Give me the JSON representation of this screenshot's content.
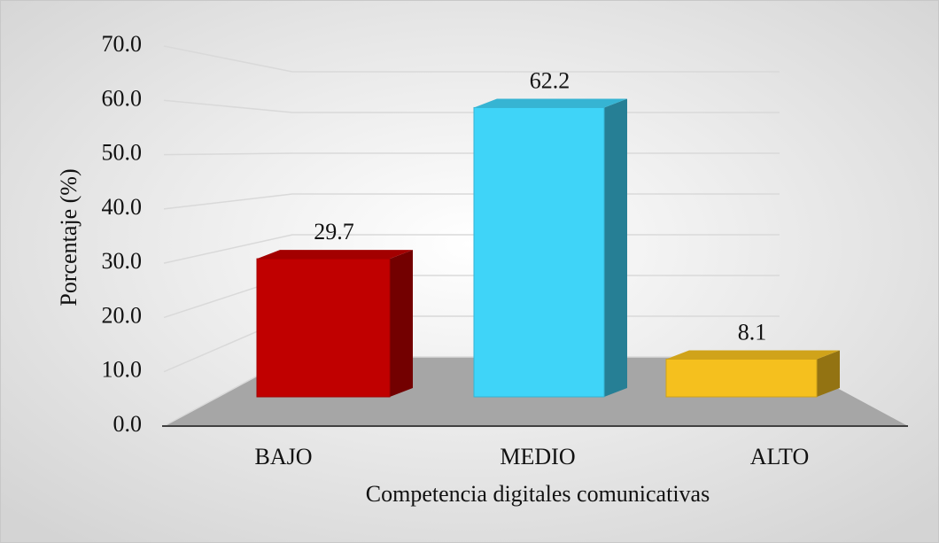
{
  "chart_data": {
    "type": "bar3d",
    "categories": [
      "BAJO",
      "MEDIO",
      "ALTO"
    ],
    "values": [
      29.7,
      62.2,
      8.1
    ],
    "colors": [
      "#c00000",
      "#3fd4f8",
      "#f5c01e"
    ],
    "xlabel": "Competencia digitales comunicativas",
    "ylabel": "Porcentaje (%)",
    "ylim": [
      0,
      70
    ],
    "yticks": [
      {
        "value": 0,
        "label": "0.0"
      },
      {
        "value": 10,
        "label": "10.0"
      },
      {
        "value": 20,
        "label": "20.0"
      },
      {
        "value": 30,
        "label": "30.0"
      },
      {
        "value": 40,
        "label": "40.0"
      },
      {
        "value": 50,
        "label": "50.0"
      },
      {
        "value": 60,
        "label": "60.0"
      },
      {
        "value": 70,
        "label": "70.0"
      }
    ],
    "grid": true
  }
}
